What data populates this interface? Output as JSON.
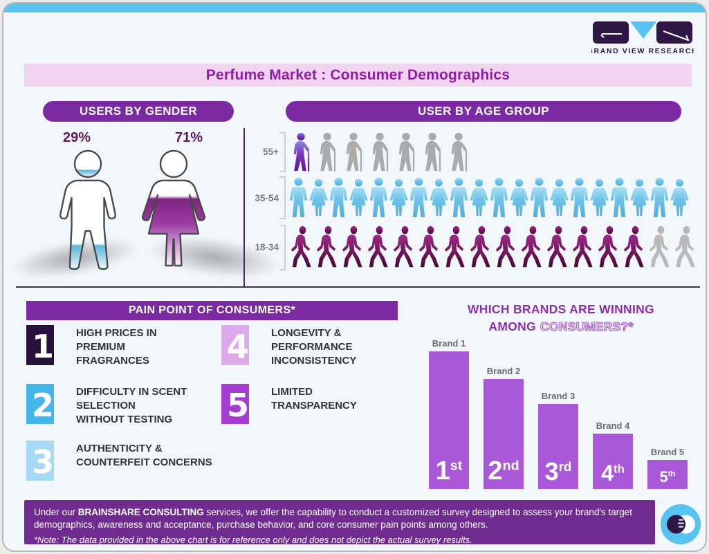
{
  "brand": {
    "logo_text": "GRAND VIEW RESEARCH"
  },
  "title": "Perfume Market : Consumer Demographics",
  "colors": {
    "accent_purple": "#7b2aa2",
    "title_banner_pink": "#f2d4f0",
    "title_text_purple": "#8e1ca8",
    "bar_purple": "#a958d8",
    "footer_purple": "#6f2b90",
    "top_strip_blue": "#56c3f0",
    "gender_pct_purple": "#5e175e"
  },
  "gender": {
    "header": "USERS BY GENDER",
    "male": {
      "label": "29%"
    },
    "female": {
      "label": "71%"
    }
  },
  "age": {
    "header": "USER BY AGE GROUP",
    "rows": [
      {
        "label": "55+",
        "icon": "elder",
        "total": 7,
        "highlighted": 1
      },
      {
        "label": "35-54",
        "icon": "adult",
        "total": 20,
        "highlighted": 20
      },
      {
        "label": "18-34",
        "icon": "walk",
        "total": 16,
        "highlighted": 14
      }
    ]
  },
  "pain": {
    "header": "PAIN POINT OF CONSUMERS*",
    "items": [
      {
        "num": "1",
        "color": "#27123b",
        "text": "HIGH PRICES IN\nPREMIUM\nFRAGRANCES"
      },
      {
        "num": "2",
        "color": "#45b5ea",
        "text": "DIFFICULTY IN SCENT\nSELECTION\nWITHOUT TESTING"
      },
      {
        "num": "3",
        "color": "#a6d9f4",
        "text": "AUTHENTICITY &\nCOUNTERFEIT CONCERNS"
      },
      {
        "num": "4",
        "color": "#dcaaea",
        "text": "LONGEVITY &\nPERFORMANCE\nINCONSISTENCY"
      },
      {
        "num": "5",
        "color": "#a53ecf",
        "text": "LIMITED\nTRANSPARENCY"
      }
    ]
  },
  "brands": {
    "title_line1": "WHICH BRANDS ARE WINNING",
    "title_line2_solid": "AMONG",
    "title_line2_outline": "CONSUMERS?*"
  },
  "chart_data": [
    {
      "type": "pictograph",
      "title": "USERS BY GENDER",
      "categories": [
        "Male",
        "Female"
      ],
      "values": [
        29,
        71
      ],
      "unit": "percent",
      "notes": "male figure filled 29% blue from bottom, female figure filled 71% purple"
    },
    {
      "type": "pictograph",
      "title": "USER BY AGE GROUP",
      "categories": [
        "55+",
        "35-54",
        "18-34"
      ],
      "icons_total": [
        7,
        20,
        16
      ],
      "icons_highlighted": [
        1,
        20,
        14
      ],
      "notes": "highlighted icons colored (purple/blue/purple), remainder gray; no numeric axis shown"
    },
    {
      "type": "bar",
      "title": "WHICH BRANDS ARE WINNING AMONG CONSUMERS?*",
      "categories": [
        "Brand 1",
        "Brand 2",
        "Brand 3",
        "Brand 4",
        "Brand 5"
      ],
      "values": [
        100,
        80,
        62,
        40,
        21
      ],
      "ylim": [
        0,
        100
      ],
      "value_note": "relative bar heights; no axis or data labels shown",
      "bar_labels": [
        {
          "num": "1",
          "suffix": "st"
        },
        {
          "num": "2",
          "suffix": "nd"
        },
        {
          "num": "3",
          "suffix": "rd"
        },
        {
          "num": "4",
          "suffix": "th"
        },
        {
          "num": "5",
          "suffix": "th"
        }
      ],
      "legend": "none",
      "grid": "off"
    }
  ],
  "footer": {
    "before_bold": "Under our ",
    "bold": "BRAINSHARE CONSULTING",
    "after_bold": " services, we offer the capability to conduct a customized survey designed to assess your brand's target demographics, awareness and acceptance, purchase behavior, and core consumer pain points among others.",
    "note": "*Note: The data provided in the above chart is for reference only and does not depict the actual survey results."
  }
}
